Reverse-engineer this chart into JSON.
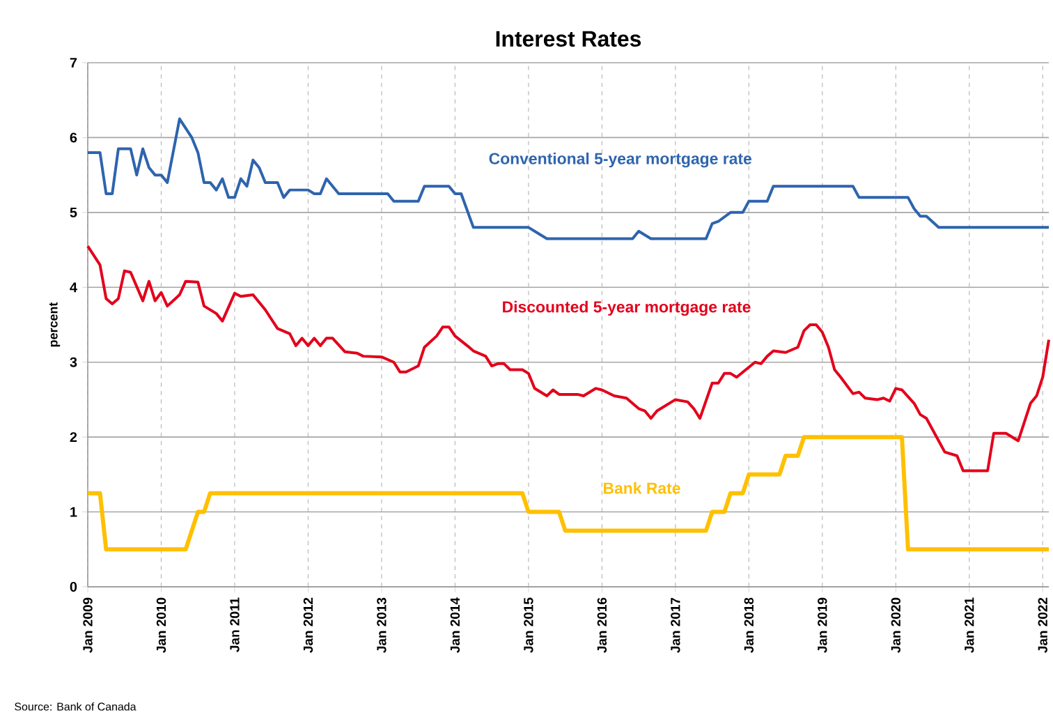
{
  "chart_data": {
    "type": "line",
    "title": "Interest Rates",
    "ylabel": "percent",
    "annotations": [
      "Source: Bank of Canada"
    ],
    "xlim": [
      "2009-01",
      "2022-02"
    ],
    "ylim": [
      0,
      7
    ],
    "yticks": [
      0,
      1,
      2,
      3,
      4,
      5,
      6,
      7
    ],
    "xticks": [
      {
        "value": "2009-01",
        "label": "Jan 2009"
      },
      {
        "value": "2010-01",
        "label": "Jan 2010"
      },
      {
        "value": "2011-01",
        "label": "Jan 2011"
      },
      {
        "value": "2012-01",
        "label": "Jan 2012"
      },
      {
        "value": "2013-01",
        "label": "Jan 2013"
      },
      {
        "value": "2014-01",
        "label": "Jan 2014"
      },
      {
        "value": "2015-01",
        "label": "Jan 2015"
      },
      {
        "value": "2016-01",
        "label": "Jan 2016"
      },
      {
        "value": "2017-01",
        "label": "Jan 2017"
      },
      {
        "value": "2018-01",
        "label": "Jan 2018"
      },
      {
        "value": "2019-01",
        "label": "Jan 2019"
      },
      {
        "value": "2020-01",
        "label": "Jan 2020"
      },
      {
        "value": "2021-01",
        "label": "Jan 2021"
      },
      {
        "value": "2022-01",
        "label": "Jan 2022"
      }
    ],
    "grid": true,
    "legend": false,
    "series": [
      {
        "name": "Conventional 5-year mortgage rate",
        "color": "#2e64ae",
        "x": [
          "2009-01",
          "2009-03",
          "2009-04",
          "2009-05",
          "2009-06",
          "2009-08",
          "2009-09",
          "2009-10",
          "2009-11",
          "2009-12",
          "2010-01",
          "2010-02",
          "2010-04",
          "2010-06",
          "2010-07",
          "2010-08",
          "2010-09",
          "2010-10",
          "2010-11",
          "2010-12",
          "2011-01",
          "2011-02",
          "2011-03",
          "2011-04",
          "2011-05",
          "2011-06",
          "2011-08",
          "2011-09",
          "2011-10",
          "2012-01",
          "2012-02",
          "2012-03",
          "2012-04",
          "2012-06",
          "2013-02",
          "2013-03",
          "2013-07",
          "2013-08",
          "2013-12",
          "2014-01",
          "2014-02",
          "2014-04",
          "2015-01",
          "2015-02",
          "2015-04",
          "2016-06",
          "2016-07",
          "2016-09",
          "2017-06",
          "2017-07",
          "2017-08",
          "2017-10",
          "2017-12",
          "2018-01",
          "2018-04",
          "2018-05",
          "2019-06",
          "2019-07",
          "2020-03",
          "2020-04",
          "2020-05",
          "2020-06",
          "2020-08",
          "2022-02"
        ],
        "values": [
          5.8,
          5.8,
          5.25,
          5.25,
          5.85,
          5.85,
          5.5,
          5.85,
          5.6,
          5.5,
          5.5,
          5.4,
          6.25,
          6.0,
          5.8,
          5.4,
          5.4,
          5.3,
          5.45,
          5.2,
          5.2,
          5.45,
          5.35,
          5.7,
          5.6,
          5.4,
          5.4,
          5.2,
          5.3,
          5.3,
          5.25,
          5.25,
          5.45,
          5.25,
          5.25,
          5.15,
          5.15,
          5.35,
          5.35,
          5.25,
          5.25,
          4.8,
          4.8,
          4.75,
          4.65,
          4.65,
          4.75,
          4.65,
          4.65,
          4.85,
          4.88,
          5.0,
          5.0,
          5.15,
          5.15,
          5.35,
          5.35,
          5.2,
          5.2,
          5.05,
          4.95,
          4.95,
          4.8,
          4.8
        ]
      },
      {
        "name": "Discounted 5-year mortgage rate",
        "color": "#e3001b",
        "x": [
          "2009-01",
          "2009-03",
          "2009-04",
          "2009-05",
          "2009-06",
          "2009-07",
          "2009-08",
          "2009-10",
          "2009-11",
          "2009-12",
          "2010-01",
          "2010-02",
          "2010-04",
          "2010-05",
          "2010-07",
          "2010-08",
          "2010-10",
          "2010-11",
          "2011-01",
          "2011-02",
          "2011-04",
          "2011-06",
          "2011-08",
          "2011-10",
          "2011-11",
          "2011-12",
          "2012-01",
          "2012-02",
          "2012-03",
          "2012-04",
          "2012-05",
          "2012-07",
          "2012-09",
          "2012-10",
          "2013-01",
          "2013-03",
          "2013-04",
          "2013-05",
          "2013-07",
          "2013-08",
          "2013-10",
          "2013-11",
          "2013-12",
          "2014-01",
          "2014-03",
          "2014-04",
          "2014-06",
          "2014-07",
          "2014-08",
          "2014-09",
          "2014-10",
          "2014-12",
          "2015-01",
          "2015-02",
          "2015-04",
          "2015-05",
          "2015-06",
          "2015-09",
          "2015-10",
          "2015-12",
          "2016-01",
          "2016-03",
          "2016-05",
          "2016-07",
          "2016-08",
          "2016-09",
          "2016-10",
          "2017-01",
          "2017-03",
          "2017-04",
          "2017-05",
          "2017-07",
          "2017-08",
          "2017-09",
          "2017-10",
          "2017-11",
          "2018-02",
          "2018-03",
          "2018-04",
          "2018-05",
          "2018-07",
          "2018-09",
          "2018-10",
          "2018-11",
          "2018-12",
          "2019-01",
          "2019-02",
          "2019-03",
          "2019-04",
          "2019-06",
          "2019-07",
          "2019-08",
          "2019-10",
          "2019-11",
          "2019-12",
          "2020-01",
          "2020-02",
          "2020-04",
          "2020-05",
          "2020-06",
          "2020-08",
          "2020-09",
          "2020-11",
          "2020-12",
          "2021-04",
          "2021-05",
          "2021-07",
          "2021-09",
          "2021-11",
          "2021-12",
          "2022-01",
          "2022-02"
        ],
        "values": [
          4.55,
          4.3,
          3.85,
          3.78,
          3.85,
          4.22,
          4.2,
          3.82,
          4.08,
          3.82,
          3.93,
          3.75,
          3.9,
          4.08,
          4.07,
          3.75,
          3.65,
          3.55,
          3.92,
          3.88,
          3.9,
          3.7,
          3.45,
          3.38,
          3.22,
          3.32,
          3.22,
          3.32,
          3.22,
          3.32,
          3.32,
          3.14,
          3.12,
          3.08,
          3.07,
          3.0,
          2.87,
          2.87,
          2.95,
          3.2,
          3.35,
          3.47,
          3.47,
          3.35,
          3.22,
          3.15,
          3.08,
          2.95,
          2.98,
          2.98,
          2.9,
          2.9,
          2.85,
          2.65,
          2.55,
          2.63,
          2.57,
          2.57,
          2.55,
          2.65,
          2.63,
          2.55,
          2.52,
          2.38,
          2.35,
          2.25,
          2.35,
          2.5,
          2.47,
          2.38,
          2.25,
          2.72,
          2.72,
          2.85,
          2.85,
          2.8,
          3.0,
          2.98,
          3.08,
          3.15,
          3.13,
          3.2,
          3.42,
          3.5,
          3.5,
          3.4,
          3.2,
          2.9,
          2.8,
          2.58,
          2.6,
          2.52,
          2.5,
          2.52,
          2.48,
          2.65,
          2.63,
          2.45,
          2.3,
          2.25,
          1.95,
          1.8,
          1.75,
          1.55,
          1.55,
          2.05,
          2.05,
          1.95,
          2.45,
          2.55,
          2.8,
          3.3
        ]
      },
      {
        "name": "Bank Rate",
        "color": "#ffc000",
        "x": [
          "2009-01",
          "2009-03",
          "2009-04",
          "2010-05",
          "2010-07",
          "2010-08",
          "2010-09",
          "2014-12",
          "2015-01",
          "2015-06",
          "2015-07",
          "2017-06",
          "2017-07",
          "2017-09",
          "2017-10",
          "2017-12",
          "2018-01",
          "2018-06",
          "2018-07",
          "2018-09",
          "2018-10",
          "2020-02",
          "2020-03",
          "2022-02"
        ],
        "values": [
          1.25,
          1.25,
          0.5,
          0.5,
          1.0,
          1.0,
          1.25,
          1.25,
          1.0,
          1.0,
          0.75,
          0.75,
          1.0,
          1.0,
          1.25,
          1.25,
          1.5,
          1.5,
          1.75,
          1.75,
          2.0,
          2.0,
          0.5,
          0.5
        ]
      }
    ]
  }
}
